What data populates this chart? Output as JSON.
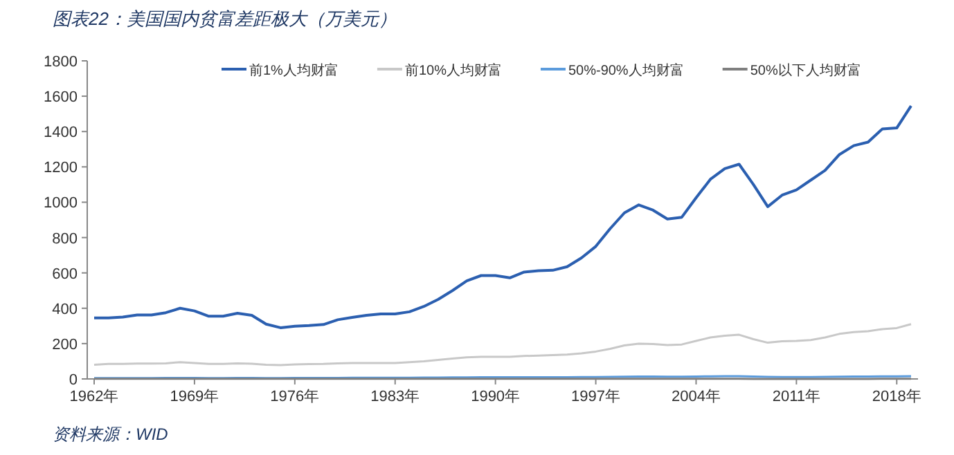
{
  "chart_data": {
    "type": "line",
    "title": "图表22：美国国内贫富差距极大（万美元）",
    "categories": [
      "1962年",
      null,
      null,
      null,
      null,
      null,
      null,
      "1969年",
      null,
      null,
      null,
      null,
      null,
      null,
      "1976年",
      null,
      null,
      null,
      null,
      null,
      null,
      "1983年",
      null,
      null,
      null,
      null,
      null,
      null,
      "1990年",
      null,
      null,
      null,
      null,
      null,
      null,
      "1997年",
      null,
      null,
      null,
      null,
      null,
      null,
      "2004年",
      null,
      null,
      null,
      null,
      null,
      null,
      "2011年",
      null,
      null,
      null,
      null,
      null,
      null,
      "2018年",
      null
    ],
    "series": [
      {
        "name": "前1%人均财富",
        "color": "#2b5fb0",
        "values": [
          345,
          345,
          350,
          362,
          362,
          375,
          400,
          385,
          355,
          355,
          372,
          360,
          310,
          290,
          298,
          302,
          308,
          335,
          348,
          360,
          368,
          368,
          380,
          410,
          450,
          500,
          555,
          585,
          585,
          572,
          605,
          612,
          615,
          635,
          685,
          750,
          850,
          940,
          985,
          955,
          905,
          915,
          1025,
          1130,
          1190,
          1215,
          1100,
          975,
          1040,
          1070,
          1125,
          1180,
          1270,
          1320,
          1340,
          1415,
          1420,
          1545
        ]
      },
      {
        "name": "前10%人均财富",
        "color": "#c8c8c8",
        "values": [
          80,
          85,
          85,
          87,
          87,
          88,
          95,
          90,
          85,
          85,
          88,
          86,
          80,
          78,
          82,
          84,
          85,
          88,
          90,
          90,
          90,
          90,
          95,
          100,
          108,
          115,
          122,
          125,
          125,
          125,
          130,
          132,
          135,
          138,
          145,
          155,
          170,
          190,
          200,
          198,
          192,
          195,
          215,
          235,
          245,
          250,
          225,
          205,
          213,
          215,
          220,
          235,
          255,
          265,
          270,
          282,
          288,
          310
        ]
      },
      {
        "name": "50%-90%人均财富",
        "color": "#5b9bdc",
        "values": [
          5,
          5,
          5,
          5,
          5,
          6,
          6,
          6,
          5,
          5,
          6,
          6,
          5,
          5,
          6,
          6,
          6,
          6,
          7,
          7,
          7,
          7,
          7,
          8,
          8,
          9,
          9,
          10,
          10,
          10,
          10,
          10,
          10,
          10,
          11,
          11,
          12,
          13,
          14,
          14,
          13,
          13,
          14,
          15,
          16,
          16,
          14,
          12,
          11,
          11,
          11,
          12,
          13,
          14,
          14,
          15,
          15,
          16
        ]
      },
      {
        "name": "50%以下人均财富",
        "color": "#7f7f7f",
        "values": [
          1,
          1,
          1,
          1,
          1,
          1,
          1,
          1,
          1,
          1,
          1,
          1,
          1,
          1,
          1,
          1,
          1,
          1,
          1,
          1,
          1,
          1,
          1,
          1,
          1,
          1,
          1,
          1,
          1,
          1,
          1,
          1,
          1,
          1,
          1,
          1,
          1,
          1,
          1,
          1,
          1,
          1,
          1,
          1,
          1,
          1,
          0,
          0,
          0,
          0,
          0,
          0,
          0,
          0,
          0,
          1,
          1,
          1
        ]
      }
    ],
    "ylim": [
      0,
      1800
    ],
    "yticks": [
      0,
      200,
      400,
      600,
      800,
      1000,
      1200,
      1400,
      1600,
      1800
    ],
    "legend": "top",
    "grid": false,
    "annotations": [
      "资料来源：WID"
    ]
  }
}
